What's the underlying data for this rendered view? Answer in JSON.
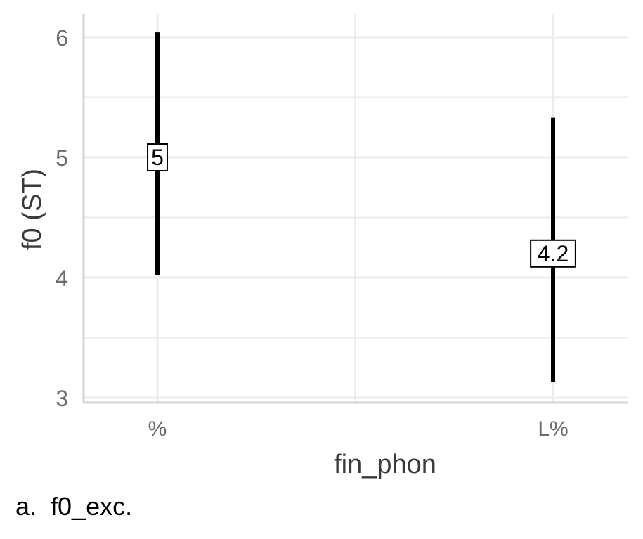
{
  "chart_data": {
    "type": "errorbar",
    "xlabel": "fin_phon",
    "ylabel": "f0 (ST)",
    "categories": [
      "%",
      "L%"
    ],
    "points": [
      {
        "x": "%",
        "y": 5.0,
        "ymin": 4.02,
        "ymax": 6.04,
        "label": "5"
      },
      {
        "x": "L%",
        "y": 4.2,
        "ymin": 3.13,
        "ymax": 5.33,
        "label": "4.2"
      }
    ],
    "yticks": [
      3,
      4,
      5,
      6
    ],
    "ytick_labels": [
      "3",
      "4",
      "5",
      "6"
    ],
    "ylim": [
      2.98,
      6.2
    ],
    "grid": true,
    "legend": "none"
  },
  "caption": "a.  f0_exc.",
  "colors": {
    "bar": "#000000",
    "grid": "#ebebeb",
    "axis": "#d4d4d4",
    "tick_text": "#6b6b6b",
    "title_text": "#3a3a3a"
  }
}
